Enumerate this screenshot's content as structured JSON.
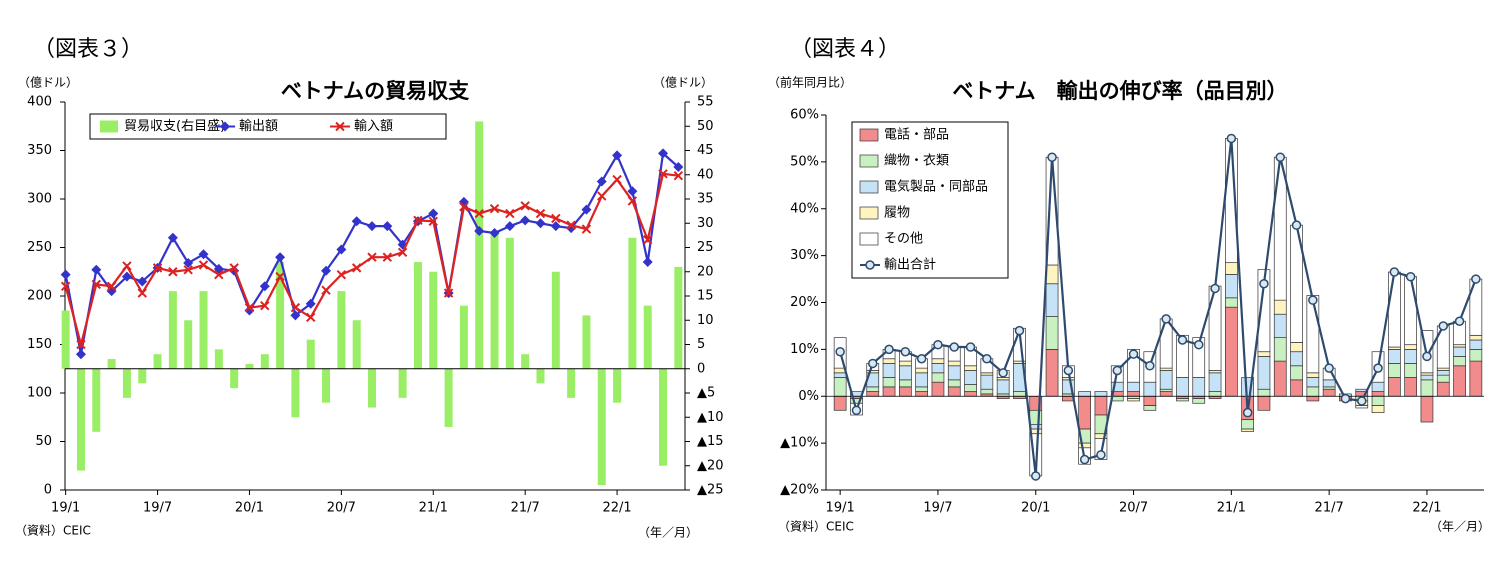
{
  "chart_data": [
    {
      "type": "combo",
      "figure_label": "（図表３）",
      "title": "ベトナムの貿易収支",
      "ylabel": "（億ドル）",
      "y2label": "（億ドル）",
      "source": "（資料）CEIC",
      "xunit": "（年／月）",
      "legend": "top-left",
      "categories": [
        "19/1",
        null,
        null,
        null,
        null,
        null,
        "19/7",
        null,
        null,
        null,
        null,
        null,
        "20/1",
        null,
        null,
        null,
        null,
        null,
        "20/7",
        null,
        null,
        null,
        null,
        null,
        "21/1",
        null,
        null,
        null,
        null,
        null,
        "21/7",
        null,
        null,
        null,
        null,
        null,
        "22/1",
        null,
        null,
        null,
        null
      ],
      "ylim": [
        0,
        400
      ],
      "yticks": [
        0,
        50,
        100,
        150,
        200,
        250,
        300,
        350,
        400
      ],
      "y2lim": [
        -25,
        55
      ],
      "y2ticks": [
        {
          "value": -25,
          "label": "▲25"
        },
        {
          "value": -20,
          "label": "▲20"
        },
        {
          "value": -15,
          "label": "▲15"
        },
        {
          "value": -10,
          "label": "▲10"
        },
        {
          "value": -5,
          "label": "▲5"
        },
        0,
        5,
        10,
        15,
        20,
        25,
        30,
        35,
        40,
        45,
        50,
        55
      ],
      "series": [
        {
          "name": "貿易収支(右目盛)",
          "type": "bar",
          "axis": "y2",
          "color": "#99ee66",
          "values": [
            12,
            -21,
            -13,
            2,
            -6,
            -3,
            3,
            16,
            10,
            16,
            4,
            -4,
            1,
            3,
            22,
            -10,
            6,
            -7,
            16,
            10,
            -8,
            0,
            -6,
            22,
            20,
            -12,
            13,
            51,
            28,
            27,
            3,
            -3,
            20,
            -6,
            11,
            -24,
            -7,
            27,
            13,
            -20,
            21
          ]
        },
        {
          "name": "輸出額",
          "type": "line",
          "marker": "diamond",
          "color": "#3333cc",
          "values": [
            222,
            140,
            227,
            205,
            220,
            215,
            229,
            260,
            234,
            243,
            228,
            226,
            185,
            210,
            240,
            180,
            192,
            226,
            248,
            277,
            272,
            272,
            253,
            277,
            285,
            203,
            297,
            267,
            265,
            272,
            278,
            275,
            272,
            270,
            289,
            318,
            345,
            308,
            235,
            347,
            333
          ]
        },
        {
          "name": "輸入額",
          "type": "line",
          "marker": "x",
          "color": "#dd2222",
          "values": [
            210,
            150,
            212,
            210,
            231,
            203,
            229,
            225,
            227,
            232,
            222,
            229,
            188,
            190,
            220,
            188,
            178,
            206,
            222,
            229,
            240,
            240,
            245,
            278,
            277,
            203,
            292,
            285,
            290,
            285,
            293,
            285,
            280,
            273,
            269,
            303,
            320,
            298,
            258,
            326,
            324
          ]
        }
      ]
    },
    {
      "type": "combo",
      "stacked": true,
      "figure_label": "（図表４）",
      "title": "ベトナム　輸出の伸び率（品目別）",
      "ylabel": "（前年同月比）",
      "source": "（資料）CEIC",
      "xunit": "（年／月）",
      "legend": "top-left",
      "categories": [
        "19/1",
        null,
        null,
        null,
        null,
        null,
        "19/7",
        null,
        null,
        null,
        null,
        null,
        "20/1",
        null,
        null,
        null,
        null,
        null,
        "20/7",
        null,
        null,
        null,
        null,
        null,
        "21/1",
        null,
        null,
        null,
        null,
        null,
        "21/7",
        null,
        null,
        null,
        null,
        null,
        "22/1",
        null,
        null,
        null
      ],
      "ylim": [
        -20,
        60
      ],
      "yticks": [
        {
          "value": -20,
          "label": "▲20%"
        },
        {
          "value": -10,
          "label": "▲10%"
        },
        {
          "value": 0,
          "label": "0%"
        },
        {
          "value": 10,
          "label": "10%"
        },
        {
          "value": 20,
          "label": "20%"
        },
        {
          "value": 30,
          "label": "30%"
        },
        {
          "value": 40,
          "label": "40%"
        },
        {
          "value": 50,
          "label": "50%"
        },
        {
          "value": 60,
          "label": "60%"
        }
      ],
      "series": [
        {
          "name": "電話・部品",
          "type": "bar",
          "color": "#f28b8b",
          "values": [
            -3,
            -0.5,
            1,
            2,
            2,
            1,
            3,
            2,
            1,
            0.5,
            -0.5,
            -0.5,
            -3,
            10,
            -1,
            -7,
            -4,
            1,
            1,
            -2,
            1,
            -0.5,
            -0.5,
            -0.5,
            19,
            -5,
            -3,
            7.5,
            3.5,
            -1,
            1.5,
            -1,
            1,
            1,
            4,
            4,
            -5.5,
            3,
            6.5,
            7.5
          ]
        },
        {
          "name": "織物・衣類",
          "type": "bar",
          "color": "#c8f0c0",
          "values": [
            4,
            -1,
            1,
            2,
            1.5,
            1,
            2,
            1.5,
            1.5,
            1,
            0.5,
            1,
            -3,
            7,
            0.5,
            -3,
            -4,
            -1,
            -0.5,
            -1,
            0.5,
            -0.5,
            -1,
            1,
            2,
            -2,
            1.5,
            5,
            3,
            2,
            0.5,
            0,
            -1,
            -2,
            3,
            3,
            3.5,
            1.5,
            2,
            2.5
          ]
        },
        {
          "name": "電気製品・同部品",
          "type": "bar",
          "color": "#c6e2f6",
          "values": [
            1,
            1,
            3,
            3,
            3,
            3,
            2,
            3,
            3,
            3,
            3,
            6,
            -1,
            7,
            3,
            1,
            1,
            2,
            2,
            3,
            4,
            4,
            4,
            4,
            5,
            4,
            7,
            5,
            3,
            2,
            1.5,
            0.5,
            0.5,
            2,
            3,
            3,
            1,
            1,
            2,
            2
          ]
        },
        {
          "name": "履物",
          "type": "bar",
          "color": "#fff4c0",
          "values": [
            1,
            0,
            0.5,
            1,
            1,
            1,
            1,
            1,
            1,
            0.5,
            0.5,
            0.5,
            -1,
            4,
            0.5,
            -1,
            -1,
            0,
            -0.5,
            0,
            0.5,
            0,
            0,
            0.5,
            2.5,
            -0.5,
            1,
            3,
            2,
            1,
            0,
            0,
            -1,
            -1.5,
            0.5,
            1,
            0.5,
            0.5,
            0.5,
            1
          ]
        },
        {
          "name": "その他",
          "type": "bar",
          "color": "#ffffff",
          "values": [
            6.5,
            -2.5,
            1.5,
            2,
            2,
            2,
            3,
            3,
            4,
            3,
            1.5,
            7,
            -9,
            23,
            2.5,
            -3.5,
            -4.5,
            3.5,
            7,
            6.5,
            10.5,
            9,
            8.5,
            18,
            26.5,
            0,
            17.5,
            30.5,
            25,
            16.5,
            2.5,
            0,
            -0.5,
            6.5,
            16,
            14.5,
            9,
            9,
            5,
            12
          ]
        },
        {
          "name": "輸出合計",
          "type": "line",
          "marker": "circle",
          "color": "#2e4a6e",
          "values": [
            9.5,
            -3,
            7,
            10,
            9.5,
            8,
            11,
            10.5,
            10.5,
            8,
            5,
            14,
            -17,
            51,
            5.5,
            -13.5,
            -12.5,
            5.5,
            9,
            6.5,
            16.5,
            12,
            11,
            23,
            55,
            -3.5,
            24,
            51,
            36.5,
            20.5,
            6,
            -0.5,
            -1,
            6,
            26.5,
            25.5,
            8.5,
            15,
            16,
            25
          ]
        }
      ]
    }
  ]
}
